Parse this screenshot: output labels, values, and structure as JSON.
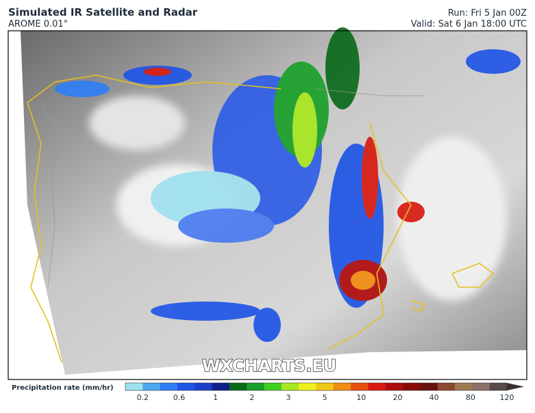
{
  "header": {
    "title": "Simulated IR Satellite and Radar",
    "model": "AROME 0.01°",
    "run": "Run: Fri 5 Jan 00Z",
    "valid": "Valid: Sat 6 Jan 18:00 UTC"
  },
  "map": {
    "watermark": "WXCHARTS.EU"
  },
  "legend": {
    "label": "Precipitation rate (mm/hr)",
    "ticks": [
      0.2,
      0.6,
      1,
      2,
      3,
      5,
      10,
      20,
      40,
      80,
      120
    ],
    "colors": [
      "#9ee0ef",
      "#4aa8f0",
      "#2f7ef5",
      "#1f55e6",
      "#1a3fc8",
      "#10208a",
      "#0a6a1a",
      "#1aa02a",
      "#40d020",
      "#a8e820",
      "#f0f020",
      "#f0c818",
      "#f08c10",
      "#e85010",
      "#d81a10",
      "#b00c0c",
      "#8a0808",
      "#6a1010",
      "#8a4a30",
      "#a07850",
      "#8a7068",
      "#5a4a48"
    ],
    "arrow_color": "#3a3030"
  }
}
